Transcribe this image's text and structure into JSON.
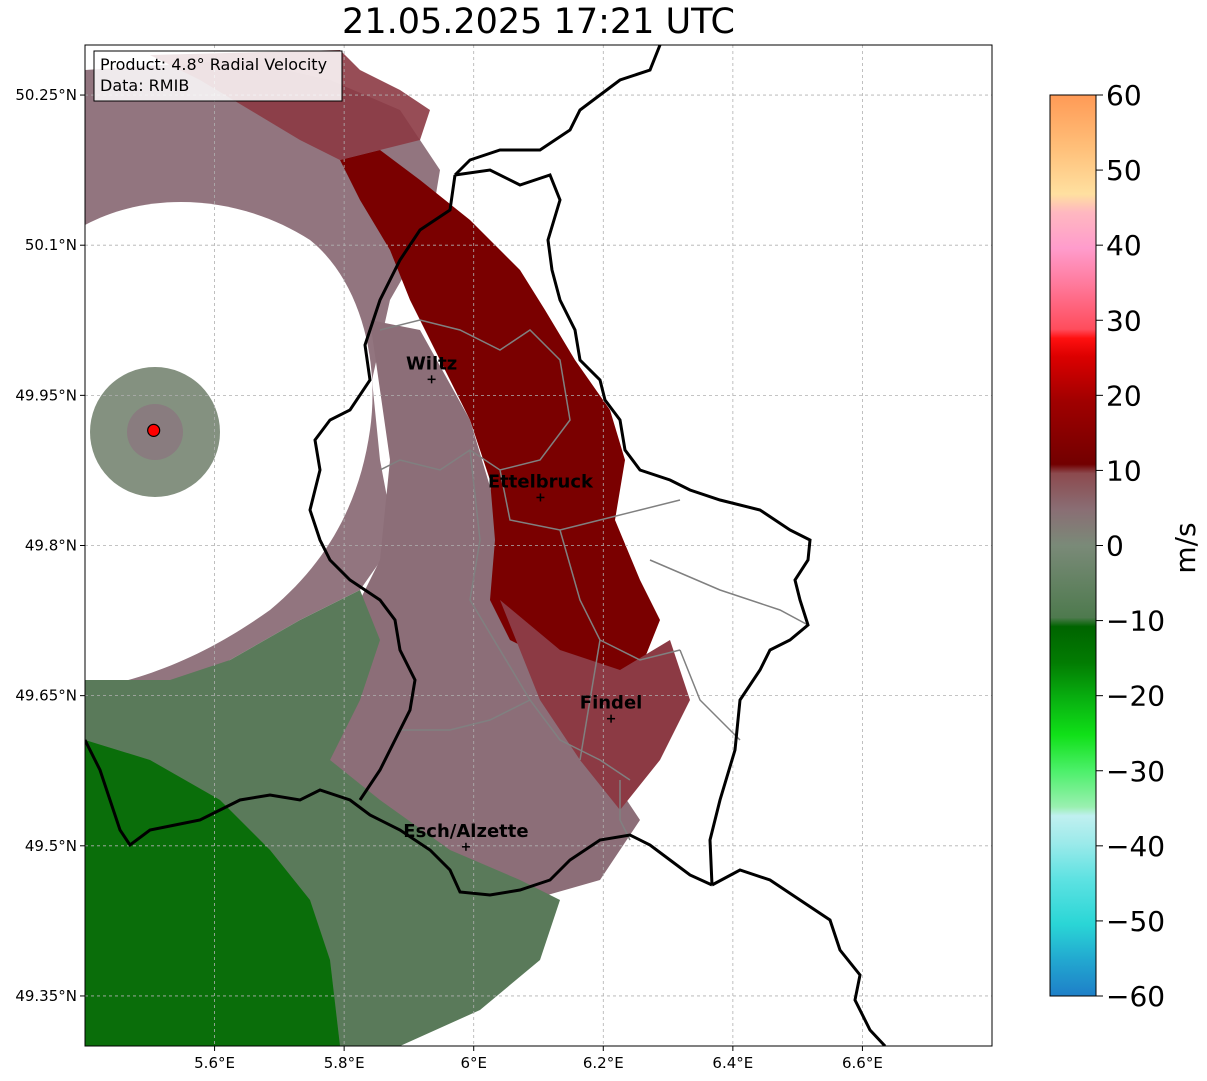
{
  "title": "21.05.2025 17:21 UTC",
  "info_box": {
    "product": "Product: 4.8° Radial Velocity",
    "data": "Data: RMIB"
  },
  "lat_ticks": [
    {
      "value": 50.25,
      "label": "50.25°N"
    },
    {
      "value": 50.1,
      "label": "50.1°N"
    },
    {
      "value": 49.95,
      "label": "49.95°N"
    },
    {
      "value": 49.8,
      "label": "49.8°N"
    },
    {
      "value": 49.65,
      "label": "49.65°N"
    },
    {
      "value": 49.5,
      "label": "49.5°N"
    },
    {
      "value": 49.35,
      "label": "49.35°N"
    }
  ],
  "lon_ticks": [
    {
      "value": 5.6,
      "label": "5.6°E"
    },
    {
      "value": 5.8,
      "label": "5.8°E"
    },
    {
      "value": 6.0,
      "label": "6°E"
    },
    {
      "value": 6.2,
      "label": "6.2°E"
    },
    {
      "value": 6.4,
      "label": "6.4°E"
    },
    {
      "value": 6.6,
      "label": "6.6°E"
    }
  ],
  "extent": {
    "lon_min": 5.4,
    "lon_max": 6.8,
    "lat_min": 49.3,
    "lat_max": 50.3
  },
  "cities": [
    {
      "name": "Wiltz",
      "lon": 5.935,
      "lat": 49.966
    },
    {
      "name": "Ettelbruck",
      "lon": 6.103,
      "lat": 49.848
    },
    {
      "name": "Findel",
      "lon": 6.212,
      "lat": 49.627
    },
    {
      "name": "Esch/Alzette",
      "lon": 5.988,
      "lat": 49.499
    }
  ],
  "radar_site": {
    "lon": 5.506,
    "lat": 49.915
  },
  "colorbar": {
    "label": "m/s",
    "min": -60,
    "max": 60,
    "ticks": [
      "60",
      "50",
      "40",
      "30",
      "20",
      "10",
      "0",
      "−10",
      "−20",
      "−30",
      "−40",
      "−50",
      "−60"
    ],
    "tick_values": [
      60,
      50,
      40,
      30,
      20,
      10,
      0,
      -10,
      -20,
      -30,
      -40,
      -50,
      -60
    ]
  },
  "colors": {
    "outbound_strong": "#7a0000",
    "outbound_mid": "#8c3a44",
    "near_zero_pink": "#8c6e78",
    "near_zero_green": "#5a7a5a",
    "inbound": "#0a6e0a",
    "border": "#000000",
    "canton": "#808080"
  }
}
